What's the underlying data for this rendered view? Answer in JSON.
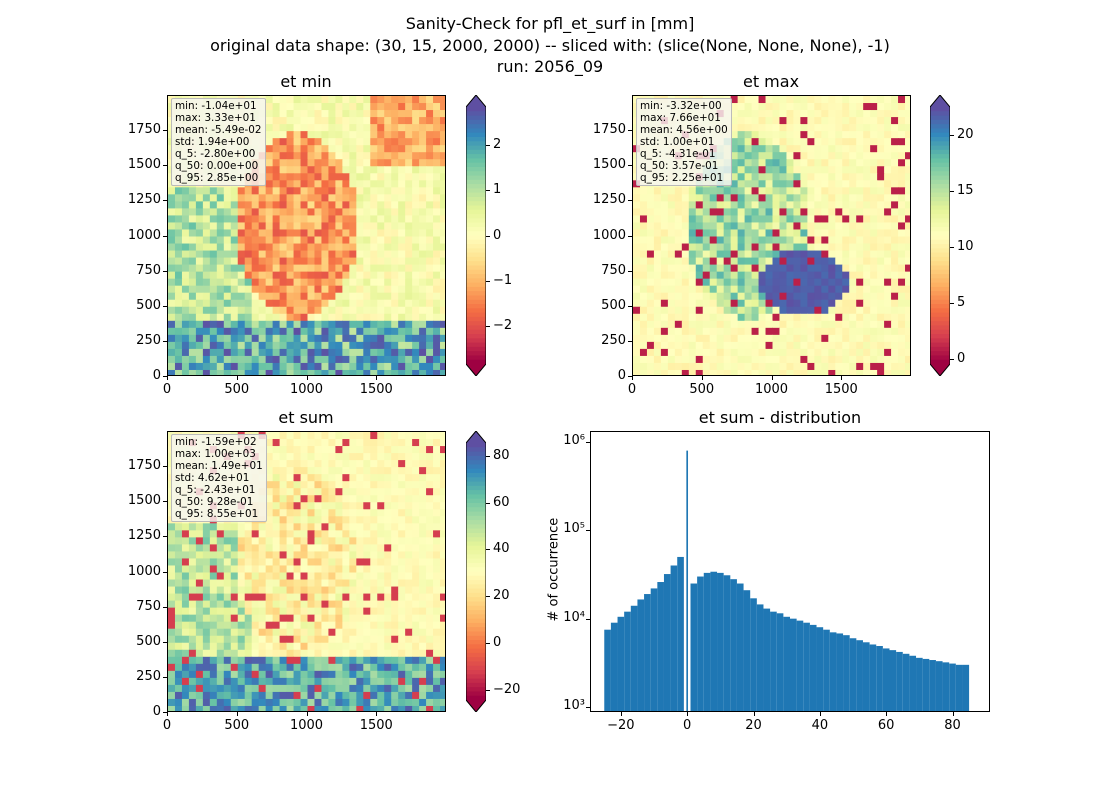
{
  "figure": {
    "title_lines": [
      "Sanity-Check for pfl_et_surf in [mm]",
      "original data shape: (30, 15, 2000, 2000) -- sliced with: (slice(None, None, None), -1)",
      "run: 2056_09"
    ]
  },
  "panels": [
    {
      "title": "et min",
      "stats": [
        "min: -1.04e+01",
        "max: 3.33e+01",
        "mean: -5.49e-02",
        "std: 1.94e+00",
        "q_5: -2.80e+00",
        "q_50: 0.00e+00",
        "q_95: 2.85e+00"
      ],
      "x_ticks": [
        "0",
        "500",
        "1000",
        "1500"
      ],
      "y_ticks": [
        "0",
        "250",
        "500",
        "750",
        "1000",
        "1250",
        "1500",
        "1750"
      ],
      "colorbar_ticks": [
        "2",
        "1",
        "0",
        "−1",
        "−2"
      ]
    },
    {
      "title": "et max",
      "stats": [
        "min: -3.32e+00",
        "max: 7.66e+01",
        "mean: 4.56e+00",
        "std: 1.00e+01",
        "q_5: -4.31e-01",
        "q_50: 3.57e-01",
        "q_95: 2.25e+01"
      ],
      "x_ticks": [
        "0",
        "500",
        "1000",
        "1500"
      ],
      "y_ticks": [
        "0",
        "250",
        "500",
        "750",
        "1000",
        "1250",
        "1500",
        "1750"
      ],
      "colorbar_ticks": [
        "20",
        "15",
        "10",
        "5",
        "0"
      ]
    },
    {
      "title": "et sum",
      "stats": [
        "min: -1.59e+02",
        "max: 1.00e+03",
        "mean: 1.49e+01",
        "std: 4.62e+01",
        "q_5: -2.43e+01",
        "q_50: 9.28e-01",
        "q_95: 8.55e+01"
      ],
      "x_ticks": [
        "0",
        "500",
        "1000",
        "1500"
      ],
      "y_ticks": [
        "0",
        "250",
        "500",
        "750",
        "1000",
        "1250",
        "1500",
        "1750"
      ],
      "colorbar_ticks": [
        "80",
        "60",
        "40",
        "20",
        "0",
        "−20"
      ]
    }
  ],
  "colors": {
    "histogram_bar": "#1f77b4",
    "spectral": [
      "#9e0142",
      "#d53e4f",
      "#f46d43",
      "#fdae61",
      "#fee08b",
      "#ffffbf",
      "#e6f598",
      "#abdda4",
      "#66c2a5",
      "#3288bd",
      "#5e4fa2"
    ]
  },
  "chart_data": [
    {
      "type": "heatmap",
      "title": "et min",
      "xlim": [
        0,
        2000
      ],
      "ylim": [
        0,
        2000
      ],
      "color_scale": [
        -2.85,
        2.85
      ],
      "colormap": "Spectral"
    },
    {
      "type": "heatmap",
      "title": "et max",
      "xlim": [
        0,
        2000
      ],
      "ylim": [
        0,
        2000
      ],
      "color_scale": [
        -0.43,
        22.5
      ],
      "colormap": "Spectral"
    },
    {
      "type": "heatmap",
      "title": "et sum",
      "xlim": [
        0,
        2000
      ],
      "ylim": [
        0,
        2000
      ],
      "color_scale": [
        -24.3,
        85.5
      ],
      "colormap": "Spectral"
    },
    {
      "type": "bar",
      "title": "et sum - distribution",
      "xlabel": "",
      "ylabel": "# of occurrence",
      "xlim": [
        -29,
        91
      ],
      "ylim": [
        900,
        1300000
      ],
      "yscale": "log",
      "x_ticks": [
        "−20",
        "0",
        "20",
        "40",
        "60",
        "80"
      ],
      "y_ticks": [
        "10³",
        "10⁴",
        "10⁵",
        "10⁶"
      ],
      "x": [
        -24,
        -22,
        -20,
        -18,
        -16,
        -14,
        -12,
        -10,
        -8,
        -6,
        -4,
        -2,
        0,
        2,
        4,
        6,
        8,
        10,
        12,
        14,
        16,
        18,
        20,
        22,
        24,
        26,
        28,
        30,
        32,
        34,
        36,
        38,
        40,
        42,
        44,
        46,
        48,
        50,
        52,
        54,
        56,
        58,
        60,
        62,
        64,
        66,
        68,
        70,
        72,
        74,
        76,
        78,
        80,
        82,
        84
      ],
      "values": [
        7500,
        9000,
        10500,
        12000,
        14000,
        16500,
        19000,
        22000,
        26000,
        32000,
        40000,
        50000,
        800000,
        25000,
        30000,
        33000,
        34000,
        33000,
        31000,
        28000,
        25000,
        21000,
        17000,
        14500,
        13000,
        12000,
        11500,
        10500,
        10000,
        9500,
        9000,
        8500,
        8000,
        7500,
        7000,
        6800,
        6500,
        6000,
        5700,
        5400,
        5100,
        4900,
        4600,
        4400,
        4200,
        4000,
        3800,
        3600,
        3500,
        3400,
        3300,
        3200,
        3100,
        3000,
        3000
      ]
    }
  ]
}
